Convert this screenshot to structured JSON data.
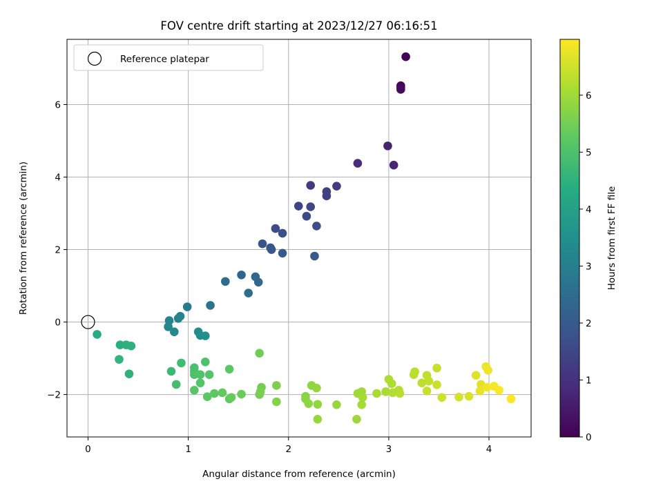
{
  "chart_data": {
    "type": "scatter",
    "title": "FOV centre drift starting at 2023/12/27 06:16:51",
    "xlabel": "Angular distance from reference (arcmin)",
    "ylabel": "Rotation from reference (arcmin)",
    "xlim": [
      -0.21,
      4.42
    ],
    "ylim": [
      -3.17,
      7.8
    ],
    "xticks": [
      0,
      1,
      2,
      3,
      4
    ],
    "yticks": [
      -2,
      0,
      2,
      4,
      6
    ],
    "grid": true,
    "legend": {
      "placement": "upper-left",
      "entries": [
        "Reference platepar"
      ]
    },
    "reference_point": {
      "x": 0,
      "y": 0,
      "label": "Reference platepar"
    },
    "colorbar": {
      "label": "Hours from first FF file",
      "min": 0,
      "max": 6.98,
      "ticks": [
        0,
        1,
        2,
        3,
        4,
        5,
        6
      ],
      "colormap": "viridis"
    },
    "points": [
      {
        "x": 3.17,
        "y": 7.32,
        "h": 0.05
      },
      {
        "x": 3.12,
        "y": 6.52,
        "h": 0.1
      },
      {
        "x": 3.12,
        "y": 6.47,
        "h": 0.15
      },
      {
        "x": 3.12,
        "y": 6.42,
        "h": 0.2
      },
      {
        "x": 2.99,
        "y": 4.86,
        "h": 0.7
      },
      {
        "x": 3.05,
        "y": 4.33,
        "h": 0.75
      },
      {
        "x": 2.69,
        "y": 4.38,
        "h": 0.9
      },
      {
        "x": 2.48,
        "y": 3.75,
        "h": 1.2
      },
      {
        "x": 2.38,
        "y": 3.6,
        "h": 1.3
      },
      {
        "x": 2.38,
        "y": 3.48,
        "h": 1.35
      },
      {
        "x": 2.22,
        "y": 3.77,
        "h": 1.25
      },
      {
        "x": 2.1,
        "y": 3.2,
        "h": 1.45
      },
      {
        "x": 2.22,
        "y": 3.18,
        "h": 1.5
      },
      {
        "x": 2.18,
        "y": 2.92,
        "h": 1.55
      },
      {
        "x": 2.28,
        "y": 2.65,
        "h": 1.6
      },
      {
        "x": 1.87,
        "y": 2.58,
        "h": 1.65
      },
      {
        "x": 1.94,
        "y": 2.45,
        "h": 1.75
      },
      {
        "x": 1.74,
        "y": 2.16,
        "h": 1.8
      },
      {
        "x": 1.82,
        "y": 2.05,
        "h": 1.85
      },
      {
        "x": 1.83,
        "y": 2.0,
        "h": 1.9
      },
      {
        "x": 1.94,
        "y": 1.9,
        "h": 1.95
      },
      {
        "x": 2.26,
        "y": 1.82,
        "h": 1.95
      },
      {
        "x": 1.53,
        "y": 1.3,
        "h": 2.3
      },
      {
        "x": 1.67,
        "y": 1.25,
        "h": 2.35
      },
      {
        "x": 1.7,
        "y": 1.1,
        "h": 2.4
      },
      {
        "x": 1.37,
        "y": 1.12,
        "h": 2.45
      },
      {
        "x": 1.6,
        "y": 0.8,
        "h": 2.5
      },
      {
        "x": 1.22,
        "y": 0.46,
        "h": 2.7
      },
      {
        "x": 0.99,
        "y": 0.42,
        "h": 2.9
      },
      {
        "x": 0.92,
        "y": 0.16,
        "h": 3.05
      },
      {
        "x": 0.9,
        "y": 0.1,
        "h": 3.1
      },
      {
        "x": 0.81,
        "y": 0.04,
        "h": 3.15
      },
      {
        "x": 0.8,
        "y": -0.13,
        "h": 3.25
      },
      {
        "x": 0.86,
        "y": -0.27,
        "h": 3.3
      },
      {
        "x": 1.1,
        "y": -0.27,
        "h": 3.35
      },
      {
        "x": 1.12,
        "y": -0.37,
        "h": 3.4
      },
      {
        "x": 1.17,
        "y": -0.38,
        "h": 3.45
      },
      {
        "x": 0.09,
        "y": -0.34,
        "h": 4.3
      },
      {
        "x": 0.32,
        "y": -0.63,
        "h": 4.4
      },
      {
        "x": 0.38,
        "y": -0.63,
        "h": 4.45
      },
      {
        "x": 0.43,
        "y": -0.66,
        "h": 4.5
      },
      {
        "x": 0.31,
        "y": -1.03,
        "h": 4.55
      },
      {
        "x": 0.41,
        "y": -1.43,
        "h": 4.5
      },
      {
        "x": 0.83,
        "y": -1.36,
        "h": 4.7
      },
      {
        "x": 0.93,
        "y": -1.13,
        "h": 4.8
      },
      {
        "x": 0.88,
        "y": -1.72,
        "h": 4.85
      },
      {
        "x": 1.06,
        "y": -1.26,
        "h": 4.9
      },
      {
        "x": 1.06,
        "y": -1.36,
        "h": 4.95
      },
      {
        "x": 1.06,
        "y": -1.45,
        "h": 5.0
      },
      {
        "x": 1.17,
        "y": -1.1,
        "h": 5.0
      },
      {
        "x": 1.12,
        "y": -1.45,
        "h": 5.05
      },
      {
        "x": 1.21,
        "y": -1.45,
        "h": 5.1
      },
      {
        "x": 1.12,
        "y": -1.68,
        "h": 5.1
      },
      {
        "x": 1.06,
        "y": -1.88,
        "h": 5.15
      },
      {
        "x": 1.19,
        "y": -2.06,
        "h": 5.2
      },
      {
        "x": 1.26,
        "y": -1.97,
        "h": 5.25
      },
      {
        "x": 1.34,
        "y": -1.95,
        "h": 5.3
      },
      {
        "x": 1.41,
        "y": -2.12,
        "h": 5.3
      },
      {
        "x": 1.43,
        "y": -2.08,
        "h": 5.35
      },
      {
        "x": 1.41,
        "y": -1.3,
        "h": 5.2
      },
      {
        "x": 1.53,
        "y": -1.99,
        "h": 5.4
      },
      {
        "x": 1.71,
        "y": -0.86,
        "h": 5.45
      },
      {
        "x": 1.73,
        "y": -1.8,
        "h": 5.5
      },
      {
        "x": 1.71,
        "y": -2.0,
        "h": 5.5
      },
      {
        "x": 1.72,
        "y": -1.92,
        "h": 5.55
      },
      {
        "x": 1.88,
        "y": -1.75,
        "h": 5.6
      },
      {
        "x": 1.88,
        "y": -2.2,
        "h": 5.65
      },
      {
        "x": 2.17,
        "y": -2.05,
        "h": 5.7
      },
      {
        "x": 2.17,
        "y": -2.12,
        "h": 5.75
      },
      {
        "x": 2.2,
        "y": -2.25,
        "h": 5.8
      },
      {
        "x": 2.23,
        "y": -1.75,
        "h": 5.8
      },
      {
        "x": 2.28,
        "y": -1.82,
        "h": 5.85
      },
      {
        "x": 2.29,
        "y": -2.27,
        "h": 5.85
      },
      {
        "x": 2.29,
        "y": -2.68,
        "h": 5.9
      },
      {
        "x": 2.48,
        "y": -2.28,
        "h": 5.9
      },
      {
        "x": 2.68,
        "y": -2.68,
        "h": 5.95
      },
      {
        "x": 2.69,
        "y": -1.97,
        "h": 6.0
      },
      {
        "x": 2.73,
        "y": -1.92,
        "h": 6.0
      },
      {
        "x": 2.74,
        "y": -2.08,
        "h": 6.05
      },
      {
        "x": 2.73,
        "y": -2.28,
        "h": 6.05
      },
      {
        "x": 2.88,
        "y": -1.97,
        "h": 6.1
      },
      {
        "x": 2.97,
        "y": -1.92,
        "h": 6.1
      },
      {
        "x": 3.0,
        "y": -1.58,
        "h": 6.15
      },
      {
        "x": 3.03,
        "y": -1.7,
        "h": 6.15
      },
      {
        "x": 3.04,
        "y": -1.95,
        "h": 6.2
      },
      {
        "x": 3.1,
        "y": -1.88,
        "h": 6.2
      },
      {
        "x": 3.11,
        "y": -1.97,
        "h": 6.25
      },
      {
        "x": 3.25,
        "y": -1.45,
        "h": 6.25
      },
      {
        "x": 3.26,
        "y": -1.37,
        "h": 6.3
      },
      {
        "x": 3.33,
        "y": -1.68,
        "h": 6.3
      },
      {
        "x": 3.38,
        "y": -1.47,
        "h": 6.35
      },
      {
        "x": 3.4,
        "y": -1.63,
        "h": 6.35
      },
      {
        "x": 3.38,
        "y": -1.9,
        "h": 6.4
      },
      {
        "x": 3.48,
        "y": -1.27,
        "h": 6.4
      },
      {
        "x": 3.48,
        "y": -1.73,
        "h": 6.45
      },
      {
        "x": 3.53,
        "y": -2.08,
        "h": 6.5
      },
      {
        "x": 3.7,
        "y": -2.07,
        "h": 6.55
      },
      {
        "x": 3.8,
        "y": -2.05,
        "h": 6.6
      },
      {
        "x": 3.87,
        "y": -1.47,
        "h": 6.65
      },
      {
        "x": 3.92,
        "y": -1.72,
        "h": 6.7
      },
      {
        "x": 3.91,
        "y": -1.9,
        "h": 6.75
      },
      {
        "x": 3.97,
        "y": -1.23,
        "h": 6.8
      },
      {
        "x": 3.99,
        "y": -1.33,
        "h": 6.85
      },
      {
        "x": 3.98,
        "y": -1.8,
        "h": 6.85
      },
      {
        "x": 4.05,
        "y": -1.77,
        "h": 6.9
      },
      {
        "x": 4.1,
        "y": -1.88,
        "h": 6.95
      },
      {
        "x": 4.22,
        "y": -2.12,
        "h": 6.98
      }
    ]
  }
}
